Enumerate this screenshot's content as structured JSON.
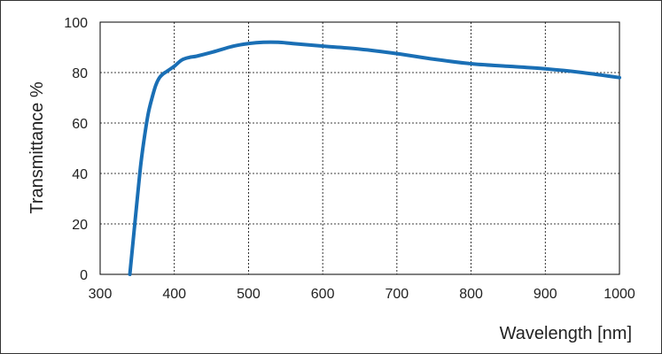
{
  "chart_data": {
    "type": "line",
    "xlabel": "Wavelength [nm]",
    "ylabel": "Transmittance %",
    "xlim": [
      300,
      1000
    ],
    "ylim": [
      0,
      100
    ],
    "x_ticks": [
      300,
      400,
      500,
      600,
      700,
      800,
      900,
      1000
    ],
    "y_ticks": [
      0,
      20,
      40,
      60,
      80,
      100
    ],
    "grid": true,
    "colors": {
      "line": "#1a6fb5",
      "grid": "#000000",
      "frame": "#000000"
    },
    "series": [
      {
        "x": [
          340,
          345,
          350,
          355,
          360,
          365,
          370,
          375,
          380,
          385,
          390,
          400,
          410,
          420,
          430,
          450,
          480,
          500,
          520,
          540,
          560,
          600,
          650,
          700,
          750,
          800,
          850,
          900,
          950,
          1000
        ],
        "y": [
          0,
          15,
          30,
          44,
          55,
          64,
          70,
          75,
          78,
          79.5,
          80.5,
          82.5,
          85,
          86,
          86.5,
          88,
          90.5,
          91.5,
          92,
          92,
          91.5,
          90.5,
          89.3,
          87.5,
          85.3,
          83.5,
          82.5,
          81.5,
          80,
          78
        ]
      }
    ]
  }
}
